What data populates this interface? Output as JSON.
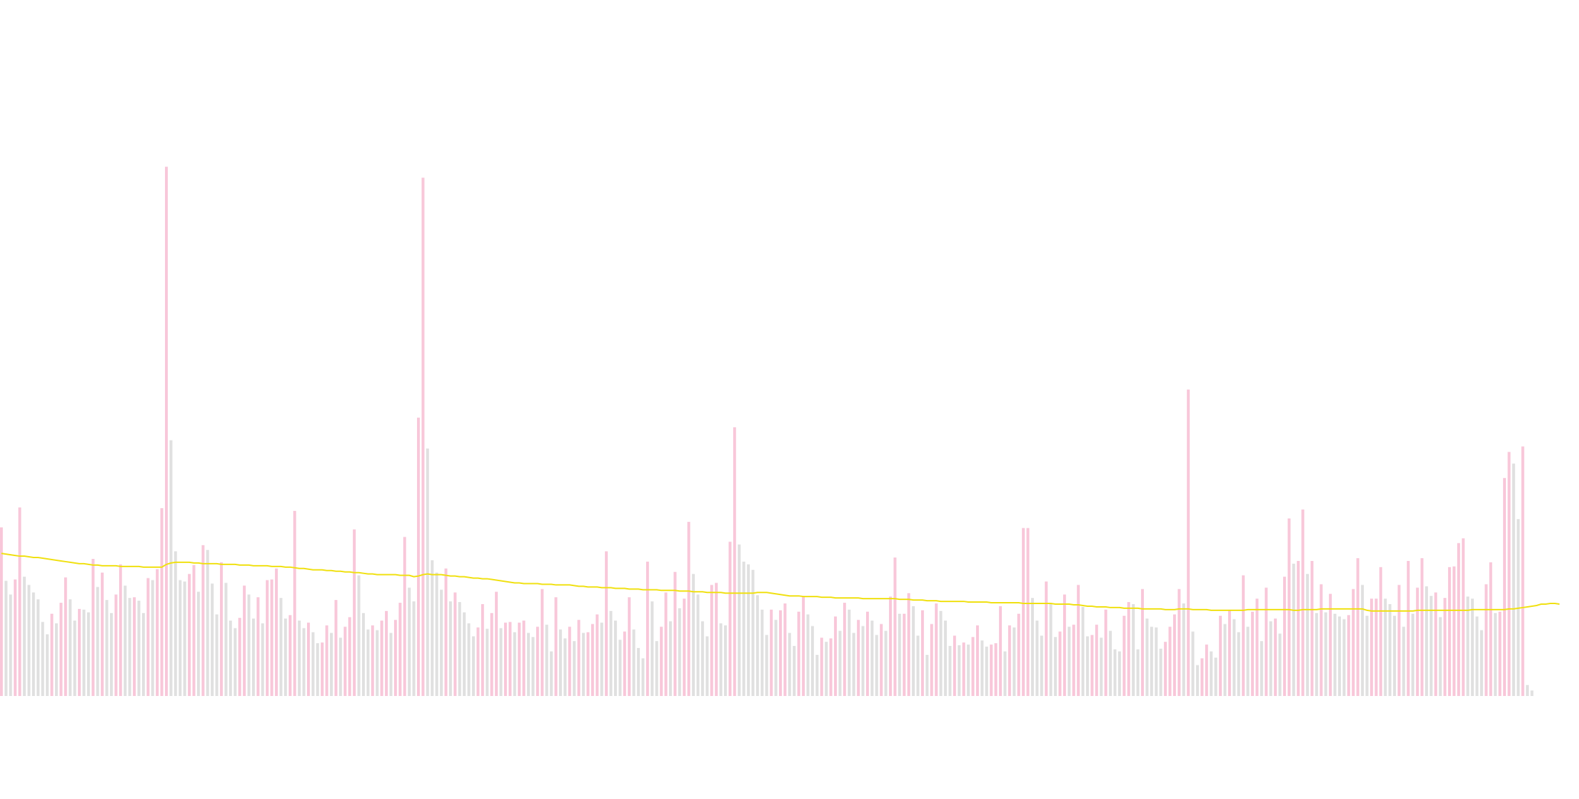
{
  "chart_data": {
    "type": "bar",
    "grid": false,
    "legend": "none",
    "ylim": [
      0,
      800
    ],
    "colors": {
      "up": "#f8c7d9",
      "down": "#e0e0e0",
      "average_line": "#f0e010"
    },
    "series": [
      {
        "values": [
          246,
          168,
          148,
          170,
          275,
          174,
          162,
          151,
          141,
          108,
          90,
          120,
          106,
          136,
          173,
          141,
          110,
          127,
          126,
          122,
          200,
          159,
          180,
          140,
          121,
          148,
          192,
          161,
          143,
          144,
          139,
          121,
          172,
          169,
          185,
          274,
          772,
          373,
          211,
          169,
          167,
          178,
          191,
          152,
          220,
          213,
          164,
          119,
          195,
          165,
          110,
          99,
          114,
          161,
          148,
          113,
          144,
          106,
          169,
          170,
          186,
          143,
          113,
          118,
          270,
          110,
          99,
          107,
          93,
          77,
          78,
          103,
          92,
          140,
          85,
          101,
          115,
          243,
          176,
          121,
          97,
          103,
          96,
          110,
          124,
          92,
          111,
          136,
          232,
          158,
          138,
          406,
          756,
          361,
          198,
          180,
          155,
          186,
          138,
          151,
          137,
          122,
          106,
          87,
          100,
          134,
          98,
          121,
          152,
          99,
          107,
          108,
          93,
          107,
          110,
          92,
          86,
          101,
          156,
          104,
          65,
          144,
          97,
          84,
          101,
          80,
          111,
          92,
          93,
          105,
          119,
          107,
          211,
          124,
          110,
          82,
          94,
          144,
          97,
          70,
          55,
          196,
          138,
          80,
          101,
          151,
          109,
          181,
          128,
          142,
          254,
          178,
          148,
          109,
          87,
          162,
          165,
          106,
          103,
          225,
          392,
          221,
          196,
          192,
          184,
          147,
          126,
          89,
          126,
          111,
          125,
          135,
          92,
          73,
          123,
          146,
          119,
          102,
          60,
          85,
          79,
          84,
          116,
          95,
          136,
          126,
          92,
          111,
          102,
          123,
          110,
          89,
          105,
          95,
          145,
          202,
          120,
          120,
          150,
          131,
          88,
          125,
          60,
          105,
          135,
          124,
          110,
          73,
          88,
          74,
          78,
          75,
          86,
          103,
          81,
          72,
          75,
          77,
          131,
          65,
          103,
          100,
          120,
          245,
          245,
          143,
          110,
          88,
          167,
          135,
          86,
          94,
          148,
          101,
          104,
          162,
          130,
          87,
          89,
          104,
          85,
          126,
          95,
          68,
          65,
          117,
          137,
          134,
          68,
          156,
          113,
          101,
          100,
          69,
          79,
          101,
          119,
          156,
          135,
          447,
          94,
          45,
          55,
          75,
          65,
          56,
          117,
          105,
          125,
          112,
          93,
          176,
          101,
          123,
          142,
          80,
          158,
          109,
          113,
          91,
          174,
          259,
          193,
          197,
          272,
          178,
          197,
          121,
          163,
          122,
          149,
          120,
          116,
          112,
          118,
          156,
          201,
          162,
          117,
          142,
          142,
          188,
          142,
          134,
          117,
          162,
          101,
          197,
          120,
          158,
          201,
          160,
          146,
          151,
          115,
          143,
          188,
          189,
          223,
          230,
          145,
          142,
          116,
          96,
          163,
          195,
          121,
          123,
          318,
          356,
          339,
          258,
          364,
          16,
          8
        ],
        "average": [
          208,
          207,
          206,
          205,
          204,
          204,
          203,
          202,
          202,
          201,
          200,
          199,
          198,
          197,
          196,
          195,
          194,
          193,
          193,
          192,
          191,
          191,
          190,
          190,
          190,
          190,
          189,
          189,
          189,
          189,
          189,
          188,
          188,
          188,
          188,
          188,
          192,
          194,
          195,
          195,
          195,
          195,
          194,
          194,
          193,
          193,
          193,
          193,
          192,
          192,
          192,
          192,
          191,
          191,
          191,
          190,
          190,
          190,
          190,
          189,
          189,
          189,
          188,
          188,
          187,
          186,
          186,
          185,
          184,
          184,
          184,
          183,
          183,
          182,
          182,
          181,
          181,
          180,
          180,
          179,
          178,
          178,
          177,
          177,
          177,
          177,
          177,
          176,
          176,
          176,
          174,
          175,
          177,
          178,
          177,
          177,
          177,
          176,
          175,
          175,
          174,
          174,
          173,
          172,
          172,
          171,
          171,
          170,
          169,
          168,
          167,
          166,
          165,
          165,
          164,
          164,
          164,
          164,
          163,
          163,
          163,
          162,
          162,
          162,
          162,
          161,
          160,
          160,
          159,
          159,
          159,
          158,
          158,
          158,
          157,
          157,
          157,
          156,
          156,
          156,
          155,
          155,
          155,
          155,
          154,
          154,
          154,
          154,
          153,
          153,
          153,
          152,
          152,
          152,
          151,
          151,
          151,
          151,
          150,
          150,
          150,
          150,
          150,
          150,
          150,
          151,
          151,
          151,
          150,
          149,
          148,
          147,
          146,
          146,
          146,
          145,
          145,
          145,
          145,
          144,
          144,
          144,
          143,
          143,
          143,
          143,
          143,
          143,
          142,
          142,
          142,
          142,
          142,
          142,
          142,
          142,
          141,
          141,
          141,
          140,
          140,
          140,
          139,
          139,
          139,
          138,
          138,
          138,
          138,
          138,
          138,
          137,
          137,
          137,
          137,
          137,
          136,
          136,
          136,
          136,
          136,
          136,
          136,
          135,
          135,
          135,
          135,
          135,
          135,
          135,
          134,
          134,
          134,
          134,
          133,
          133,
          132,
          131,
          131,
          130,
          130,
          130,
          129,
          129,
          129,
          128,
          128,
          128,
          128,
          127,
          127,
          127,
          127,
          127,
          126,
          126,
          126,
          127,
          127,
          127,
          126,
          126,
          126,
          126,
          125,
          125,
          125,
          125,
          125,
          125,
          125,
          125,
          126,
          126,
          126,
          126,
          126,
          126,
          126,
          126,
          126,
          126,
          125,
          125,
          126,
          126,
          126,
          126,
          127,
          127,
          127,
          127,
          127,
          127,
          127,
          127,
          127,
          127,
          125,
          124,
          124,
          124,
          124,
          124,
          124,
          124,
          124,
          124,
          124,
          125,
          125,
          125,
          125,
          125,
          125,
          125,
          125,
          125,
          125,
          125,
          125,
          126,
          126,
          126,
          126,
          126,
          126,
          126,
          126,
          127,
          127,
          128,
          129,
          130,
          131,
          132,
          134,
          134,
          135,
          135,
          134
        ]
      }
    ]
  }
}
